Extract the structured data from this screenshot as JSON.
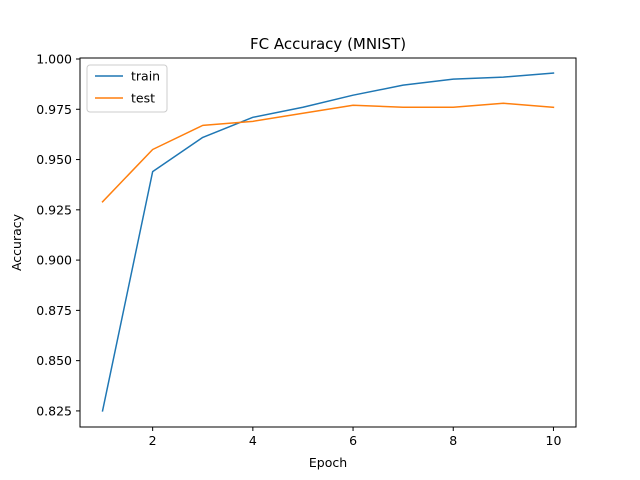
{
  "chart_data": {
    "type": "line",
    "title": "FC Accuracy (MNIST)",
    "xlabel": "Epoch",
    "ylabel": "Accuracy",
    "x": [
      1,
      2,
      3,
      4,
      5,
      6,
      7,
      8,
      9,
      10
    ],
    "xlim": [
      0.55,
      10.45
    ],
    "ylim": [
      0.817,
      1.0005
    ],
    "xticks": [
      2,
      4,
      6,
      8,
      10
    ],
    "yticks": [
      0.825,
      0.85,
      0.875,
      0.9,
      0.925,
      0.95,
      0.975,
      1.0
    ],
    "xtick_labels": [
      "2",
      "4",
      "6",
      "8",
      "10"
    ],
    "ytick_labels": [
      "0.825",
      "0.850",
      "0.875",
      "0.900",
      "0.925",
      "0.950",
      "0.975",
      "1.000"
    ],
    "legend_position": "top-left",
    "grid": false,
    "series": [
      {
        "name": "train",
        "color": "#1f77b4",
        "values": [
          0.825,
          0.944,
          0.961,
          0.971,
          0.976,
          0.982,
          0.987,
          0.99,
          0.991,
          0.993
        ]
      },
      {
        "name": "test",
        "color": "#ff7f0e",
        "values": [
          0.929,
          0.955,
          0.967,
          0.969,
          0.973,
          0.977,
          0.976,
          0.976,
          0.978,
          0.976
        ]
      }
    ]
  }
}
